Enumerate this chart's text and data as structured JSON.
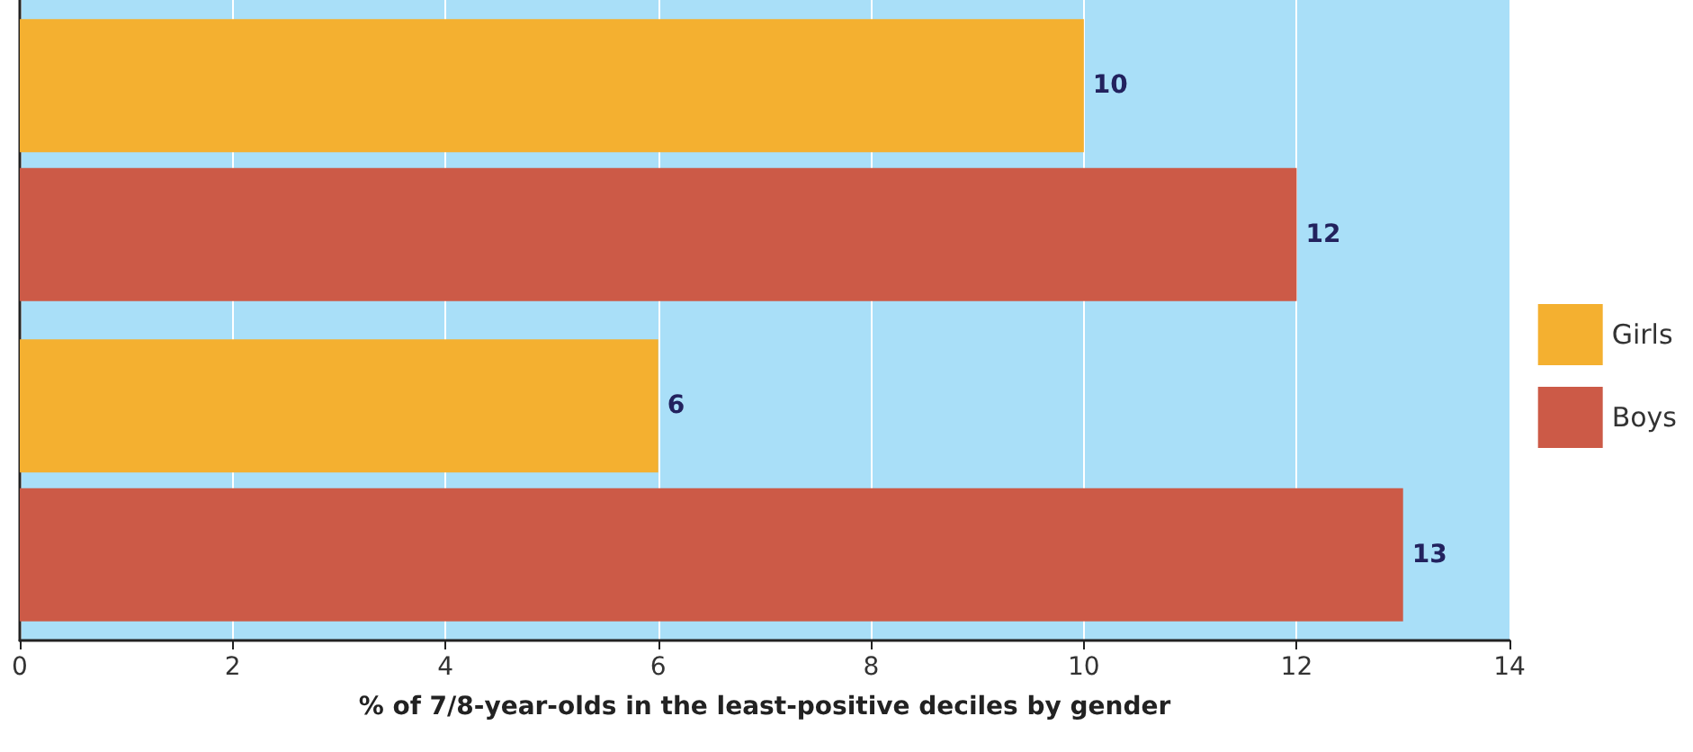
{
  "chart_data": {
    "type": "bar",
    "orientation": "horizontal",
    "xlabel": "% of 7/8-year-olds in the least-positive deciles by gender",
    "categories": [
      null,
      null
    ],
    "series": [
      {
        "name": "Girls",
        "color": "#f4b030",
        "values": [
          10,
          6
        ]
      },
      {
        "name": "Boys",
        "color": "#cc5a47",
        "values": [
          12,
          13
        ]
      }
    ],
    "xlim": [
      0,
      14
    ],
    "xticks": [
      0,
      2,
      4,
      6,
      8,
      10,
      12,
      14
    ],
    "grid": "x",
    "legend": "right",
    "data_labels": true
  }
}
